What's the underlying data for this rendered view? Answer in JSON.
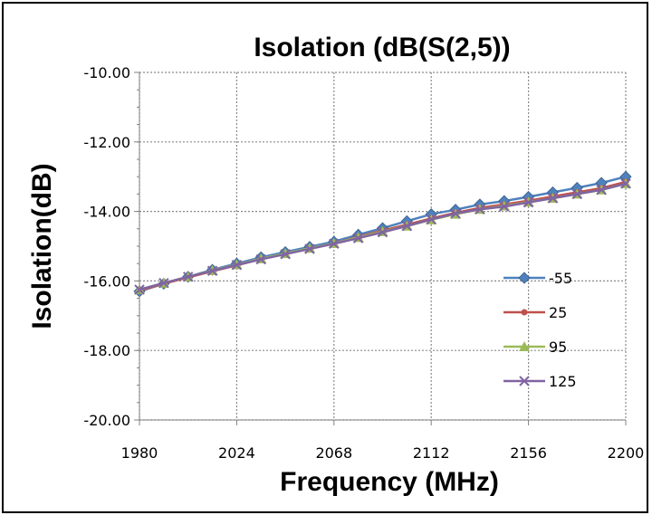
{
  "chart_data": {
    "type": "line",
    "title": "Isolation (dB(S(2,5))",
    "xlabel": "Frequency (MHz)",
    "ylabel": "Isolation(dB)",
    "xlim": [
      1980,
      2200
    ],
    "ylim": [
      -20,
      -10
    ],
    "x_ticks": [
      "1980",
      "2024",
      "2068",
      "2112",
      "2156",
      "2200"
    ],
    "y_ticks": [
      "-10.00",
      "-12.00",
      "-14.00",
      "-16.00",
      "-18.00",
      "-20.00"
    ],
    "grid": true,
    "legend_position": "right",
    "x": [
      1980,
      1991,
      2002,
      2013,
      2024,
      2035,
      2046,
      2057,
      2068,
      2079,
      2090,
      2101,
      2112,
      2123,
      2134,
      2145,
      2156,
      2167,
      2178,
      2189,
      2200
    ],
    "series": [
      {
        "name": "-55",
        "color": "#4F81BD",
        "marker": "diamond",
        "values": [
          -16.3,
          -16.08,
          -15.88,
          -15.68,
          -15.5,
          -15.32,
          -15.17,
          -15.02,
          -14.87,
          -14.67,
          -14.48,
          -14.28,
          -14.08,
          -13.95,
          -13.8,
          -13.7,
          -13.58,
          -13.45,
          -13.32,
          -13.18,
          -13.0
        ]
      },
      {
        "name": "25",
        "color": "#C0504D",
        "marker": "circle",
        "values": [
          -16.28,
          -16.08,
          -15.9,
          -15.72,
          -15.55,
          -15.37,
          -15.22,
          -15.07,
          -14.92,
          -14.73,
          -14.55,
          -14.38,
          -14.2,
          -14.04,
          -13.9,
          -13.8,
          -13.69,
          -13.57,
          -13.45,
          -13.33,
          -13.15
        ]
      },
      {
        "name": "95",
        "color": "#9BBB59",
        "marker": "triangle",
        "values": [
          -16.25,
          -16.06,
          -15.88,
          -15.7,
          -15.53,
          -15.36,
          -15.21,
          -15.06,
          -14.92,
          -14.75,
          -14.58,
          -14.42,
          -14.24,
          -14.08,
          -13.94,
          -13.84,
          -13.73,
          -13.62,
          -13.5,
          -13.38,
          -13.2
        ]
      },
      {
        "name": "125",
        "color": "#8064A2",
        "marker": "x",
        "values": [
          -16.25,
          -16.06,
          -15.88,
          -15.71,
          -15.54,
          -15.38,
          -15.23,
          -15.08,
          -14.93,
          -14.77,
          -14.6,
          -14.42,
          -14.23,
          -14.06,
          -13.94,
          -13.86,
          -13.74,
          -13.62,
          -13.5,
          -13.38,
          -13.2
        ]
      }
    ]
  }
}
